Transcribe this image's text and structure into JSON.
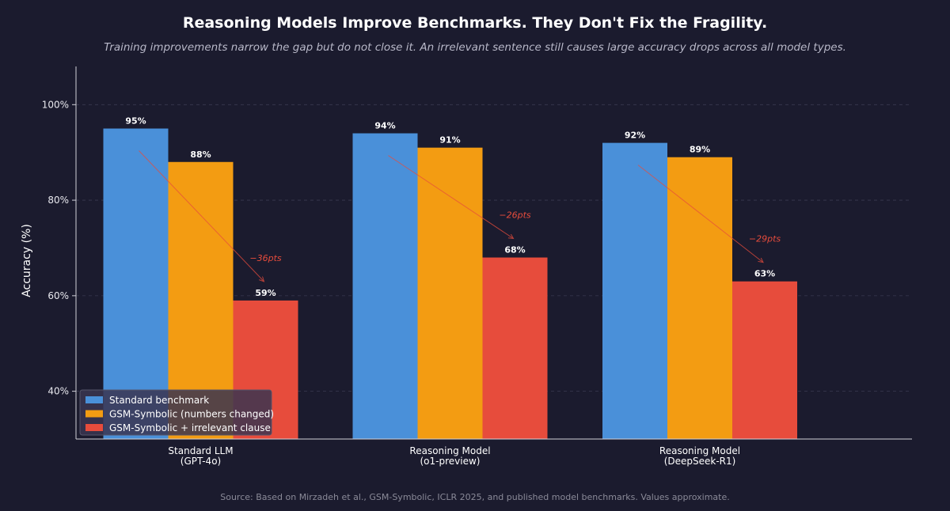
{
  "chart_data": {
    "type": "bar",
    "title": "Reasoning Models Improve Benchmarks. They Don't Fix the Fragility.",
    "subtitle": "Training improvements narrow the gap but do not close it. An irrelevant sentence still causes large accuracy drops across all model types.",
    "ylabel": "Accuracy (%)",
    "ylim": [
      30,
      108
    ],
    "yticks": [
      40,
      60,
      80,
      100
    ],
    "ytick_labels": [
      "40%",
      "60%",
      "80%",
      "100%"
    ],
    "grid": true,
    "legend_position": "bottom-left",
    "categories": [
      [
        "Standard LLM",
        "(GPT-4o)"
      ],
      [
        "Reasoning Model",
        "(o1-preview)"
      ],
      [
        "Reasoning Model",
        "(DeepSeek-R1)"
      ]
    ],
    "series": [
      {
        "name": "Standard benchmark",
        "color": "#4a90d9",
        "values": [
          95,
          94,
          92
        ],
        "labels": [
          "95%",
          "94%",
          "92%"
        ]
      },
      {
        "name": "GSM-Symbolic (numbers changed)",
        "color": "#f39c12",
        "values": [
          88,
          91,
          89
        ],
        "labels": [
          "88%",
          "91%",
          "89%"
        ]
      },
      {
        "name": "GSM-Symbolic + irrelevant clause",
        "color": "#e74c3c",
        "values": [
          59,
          68,
          63
        ],
        "labels": [
          "59%",
          "68%",
          "63%"
        ]
      }
    ],
    "annotations": [
      "−36pts",
      "−26pts",
      "−29pts"
    ]
  },
  "source_note": "Source: Based on Mirzadeh et al., GSM-Symbolic, ICLR 2025, and published model benchmarks. Values approximate.",
  "colors": {
    "background": "#1b1b2e",
    "grid": "#3a3a50",
    "axis": "#d0d0d8",
    "drop_arrow": "#e74c3c"
  }
}
